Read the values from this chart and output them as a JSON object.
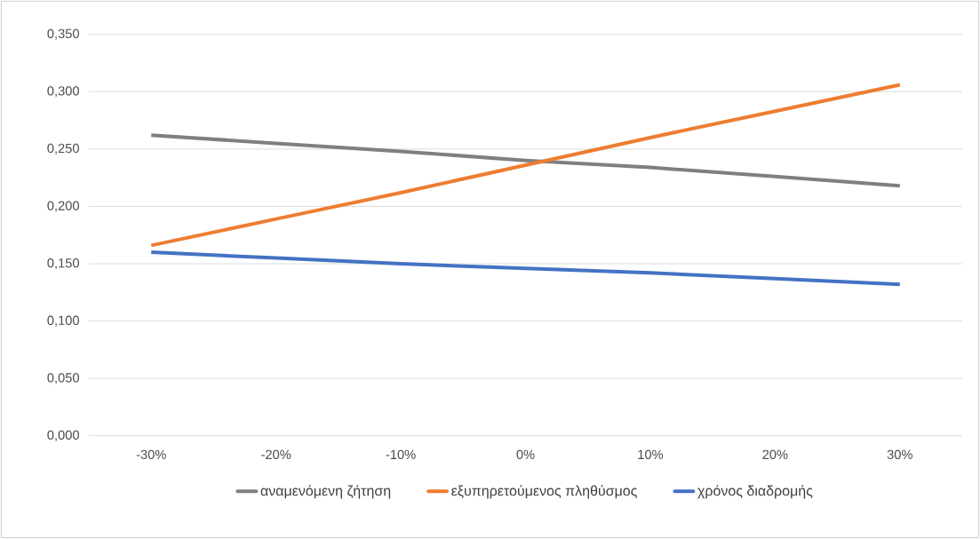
{
  "chart_data": {
    "type": "line",
    "categories": [
      "-30%",
      "-20%",
      "-10%",
      "0%",
      "10%",
      "20%",
      "30%"
    ],
    "series": [
      {
        "name": "αναμενόμενη ζήτηση",
        "color": "#7f7f7f",
        "values": [
          0.262,
          0.255,
          0.248,
          0.24,
          0.234,
          0.226,
          0.218
        ]
      },
      {
        "name": "εξυπηρετούμενος πληθύσμος",
        "color": "#ed7d31",
        "values": [
          0.166,
          0.189,
          0.212,
          0.236,
          0.26,
          0.283,
          0.306
        ]
      },
      {
        "name": "χρόνος διαδρομής",
        "color": "#4472c4",
        "values": [
          0.16,
          0.155,
          0.15,
          0.146,
          0.142,
          0.137,
          0.132
        ]
      }
    ],
    "ylim": [
      0,
      0.35
    ],
    "yticks": [
      {
        "value": 0,
        "label": "0,000"
      },
      {
        "value": 0.05,
        "label": "0,050"
      },
      {
        "value": 0.1,
        "label": "0,100"
      },
      {
        "value": 0.15,
        "label": "0,150"
      },
      {
        "value": 0.2,
        "label": "0,200"
      },
      {
        "value": 0.25,
        "label": "0,250"
      },
      {
        "value": 0.3,
        "label": "0,300"
      },
      {
        "value": 0.35,
        "label": "0,350"
      }
    ],
    "grid": "y",
    "legend": "bottom",
    "marker": "none",
    "line_style": "solid"
  }
}
